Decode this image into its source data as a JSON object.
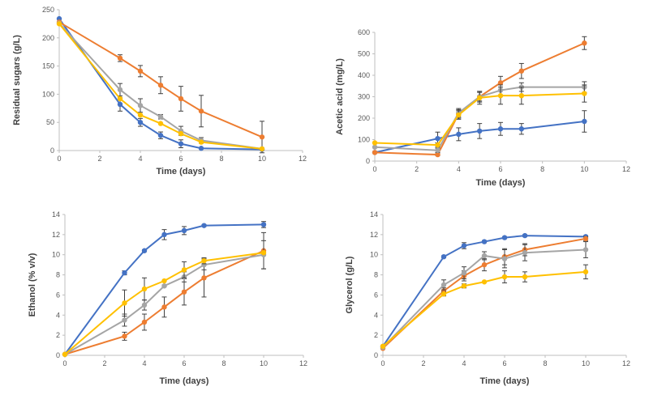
{
  "colors": {
    "series_1": "#4472C4",
    "series_2": "#ED7D31",
    "series_3": "#A5A5A5",
    "series_4": "#FFC000",
    "axis": "#BFBFBF",
    "errorbar": "#404040"
  },
  "chart_data": [
    {
      "type": "line",
      "panel": "top-left",
      "xlabel": "Time (days)",
      "ylabel": "Residual sugars (g/L)",
      "xlim": [
        0,
        12
      ],
      "ylim": [
        0,
        250
      ],
      "xticks": [
        0,
        2,
        4,
        6,
        8,
        10,
        12
      ],
      "yticks": [
        0,
        50,
        100,
        150,
        200,
        250
      ],
      "grid": false,
      "series": [
        {
          "name": "series_1",
          "x": [
            0,
            3,
            4,
            5,
            6,
            7,
            10
          ],
          "values": [
            234,
            82,
            50,
            27,
            12,
            4,
            2
          ],
          "errors": [
            0,
            12,
            7,
            6,
            7,
            0,
            0
          ]
        },
        {
          "name": "series_2",
          "x": [
            0,
            3,
            4,
            5,
            6,
            7,
            10
          ],
          "values": [
            228,
            164,
            141,
            116,
            92,
            70,
            24
          ],
          "errors": [
            0,
            6,
            10,
            15,
            22,
            28,
            28
          ]
        },
        {
          "name": "series_3",
          "x": [
            0,
            3,
            4,
            5,
            6,
            7,
            10
          ],
          "values": [
            226,
            108,
            80,
            60,
            35,
            18,
            3
          ],
          "errors": [
            0,
            11,
            12,
            4,
            8,
            5,
            0
          ]
        },
        {
          "name": "series_4",
          "x": [
            0,
            3,
            4,
            5,
            6,
            7,
            10
          ],
          "values": [
            225,
            92,
            63,
            48,
            30,
            15,
            3
          ],
          "errors": [
            0,
            0,
            0,
            0,
            0,
            0,
            0
          ]
        }
      ]
    },
    {
      "type": "line",
      "panel": "top-right",
      "xlabel": "Time (days)",
      "ylabel": "Acetic acid (mg/L)",
      "xlim": [
        0,
        12
      ],
      "ylim": [
        0,
        600
      ],
      "xticks": [
        0,
        2,
        4,
        6,
        8,
        10,
        12
      ],
      "yticks": [
        0,
        100,
        200,
        300,
        400,
        500,
        600
      ],
      "grid": false,
      "series": [
        {
          "name": "series_1",
          "x": [
            0,
            3,
            4,
            5,
            6,
            7,
            10
          ],
          "values": [
            40,
            105,
            125,
            140,
            150,
            150,
            185
          ],
          "errors": [
            0,
            30,
            30,
            35,
            30,
            25,
            50
          ]
        },
        {
          "name": "series_2",
          "x": [
            0,
            3,
            4,
            5,
            6,
            7,
            10
          ],
          "values": [
            40,
            30,
            220,
            300,
            365,
            420,
            550
          ],
          "errors": [
            0,
            5,
            20,
            25,
            30,
            35,
            30
          ]
        },
        {
          "name": "series_3",
          "x": [
            0,
            3,
            4,
            5,
            6,
            7,
            10
          ],
          "values": [
            65,
            50,
            225,
            300,
            330,
            345,
            345
          ],
          "errors": [
            0,
            10,
            20,
            20,
            25,
            20,
            25
          ]
        },
        {
          "name": "series_4",
          "x": [
            0,
            3,
            4,
            5,
            6,
            7,
            10
          ],
          "values": [
            85,
            75,
            215,
            295,
            305,
            305,
            315
          ],
          "errors": [
            0,
            10,
            20,
            30,
            40,
            40,
            40
          ]
        }
      ]
    },
    {
      "type": "line",
      "panel": "bottom-left",
      "xlabel": "Time (days)",
      "ylabel": "Ethanol (% v/v)",
      "xlim": [
        0,
        12
      ],
      "ylim": [
        0,
        14
      ],
      "xticks": [
        0,
        2,
        4,
        6,
        8,
        10,
        12
      ],
      "yticks": [
        0,
        2,
        4,
        6,
        8,
        10,
        12,
        14
      ],
      "grid": false,
      "series": [
        {
          "name": "series_1",
          "x": [
            0,
            3,
            4,
            5,
            6,
            7,
            10
          ],
          "values": [
            0.1,
            8.2,
            10.4,
            12.0,
            12.4,
            12.9,
            13.0
          ],
          "errors": [
            0,
            0.2,
            0.1,
            0.5,
            0.4,
            0.1,
            0.3
          ]
        },
        {
          "name": "series_2",
          "x": [
            0,
            3,
            4,
            5,
            6,
            7,
            10
          ],
          "values": [
            0.1,
            1.9,
            3.3,
            4.8,
            6.3,
            7.7,
            10.4
          ],
          "errors": [
            0,
            0.4,
            0.8,
            1.0,
            1.3,
            1.9,
            1.8
          ]
        },
        {
          "name": "series_3",
          "x": [
            0,
            3,
            4,
            5,
            6,
            7,
            10
          ],
          "values": [
            0.1,
            3.5,
            5.0,
            6.9,
            7.8,
            9.0,
            10.0
          ],
          "errors": [
            0,
            0.6,
            0.5,
            0.1,
            0.5,
            0.5,
            1.4
          ]
        },
        {
          "name": "series_4",
          "x": [
            0,
            3,
            4,
            5,
            6,
            7,
            10
          ],
          "values": [
            0.1,
            5.2,
            6.6,
            7.4,
            8.5,
            9.4,
            10.2
          ],
          "errors": [
            0,
            1.3,
            1.1,
            0,
            0.8,
            0.3,
            0
          ]
        }
      ]
    },
    {
      "type": "line",
      "panel": "bottom-right",
      "xlabel": "Time (days)",
      "ylabel": "Glycerol (g/L)",
      "xlim": [
        0,
        12
      ],
      "ylim": [
        0,
        14
      ],
      "xticks": [
        0,
        2,
        4,
        6,
        8,
        10,
        12
      ],
      "yticks": [
        0,
        2,
        4,
        6,
        8,
        10,
        12,
        14
      ],
      "grid": false,
      "series": [
        {
          "name": "series_1",
          "x": [
            0,
            3,
            4,
            5,
            6,
            7,
            10
          ],
          "values": [
            0.9,
            9.8,
            10.9,
            11.3,
            11.7,
            11.9,
            11.8
          ],
          "errors": [
            0,
            0.1,
            0.3,
            0.1,
            0.1,
            0.1,
            0.1
          ]
        },
        {
          "name": "series_2",
          "x": [
            0,
            3,
            4,
            5,
            6,
            7,
            10
          ],
          "values": [
            0.7,
            6.4,
            7.9,
            9.0,
            9.8,
            10.5,
            11.6
          ],
          "errors": [
            0,
            0.3,
            0.5,
            0.6,
            0.8,
            0.6,
            0.2
          ]
        },
        {
          "name": "series_3",
          "x": [
            0,
            3,
            4,
            5,
            6,
            7,
            10
          ],
          "values": [
            0.8,
            7.0,
            8.2,
            9.9,
            9.6,
            10.2,
            10.5
          ],
          "errors": [
            0,
            0.5,
            0.6,
            0.4,
            0.9,
            0.8,
            0.8
          ]
        },
        {
          "name": "series_4",
          "x": [
            0,
            3,
            4,
            5,
            6,
            7,
            10
          ],
          "values": [
            0.9,
            6.1,
            6.9,
            7.3,
            7.8,
            7.8,
            8.3
          ],
          "errors": [
            0,
            0.2,
            0.2,
            0,
            0.6,
            0.5,
            0.7
          ]
        }
      ]
    }
  ]
}
